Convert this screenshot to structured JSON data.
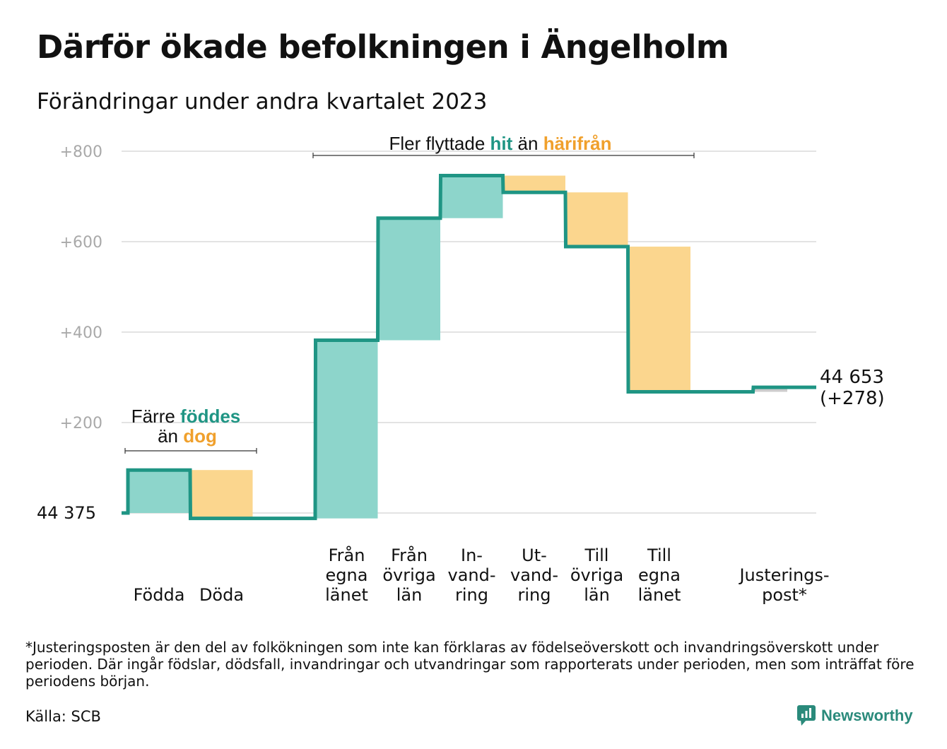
{
  "title": "Därför ökade befolkningen i Ängelholm",
  "subtitle": "Förändringar under andra kvartalet 2023",
  "footnote": "*Justeringsposten är den del av folkökningen som inte kan förklaras av födelseöverskott och invandringsöverskott under perioden. Där ingår födslar, dödsfall, invandringar och utvandringar som rapporterats under perioden, men som inträffat före periodens början.",
  "source": "Källa: SCB",
  "logo_text": "Newsworthy",
  "colors": {
    "increase": "#8dd5cb",
    "decrease": "#fbd68e",
    "line": "#1f9584",
    "adjustment": "#cccccc",
    "highlight_teal": "#1f9584",
    "highlight_orange": "#f0a02c",
    "axis_text": "#a9a9a9",
    "grid": "#e3e3e3"
  },
  "chart_data": {
    "type": "waterfall",
    "start_label": "44  375",
    "end_label_line1": "44 653",
    "end_label_line2": "(+278)",
    "ylim": [
      -20,
      820
    ],
    "yticks": [
      200,
      400,
      600,
      800
    ],
    "ytick_labels": [
      "+200",
      "+400",
      "+600",
      "+800"
    ],
    "grid": true,
    "steps": [
      {
        "label": [
          "Födda"
        ],
        "delta": 95,
        "kind": "increase"
      },
      {
        "label": [
          "Döda"
        ],
        "delta": -107,
        "kind": "decrease"
      },
      {
        "label": [],
        "delta": 0,
        "kind": "gap"
      },
      {
        "label": [
          "Från",
          "egna",
          "länet"
        ],
        "delta": 394,
        "kind": "increase"
      },
      {
        "label": [
          "Från",
          "övriga",
          "län"
        ],
        "delta": 270,
        "kind": "increase"
      },
      {
        "label": [
          "In-",
          "vand-",
          "ring"
        ],
        "delta": 94,
        "kind": "increase"
      },
      {
        "label": [
          "Ut-",
          "vand-",
          "ring"
        ],
        "delta": -37,
        "kind": "decrease"
      },
      {
        "label": [
          "Till",
          "övriga",
          "län"
        ],
        "delta": -120,
        "kind": "decrease"
      },
      {
        "label": [
          "Till",
          "egna",
          "länet"
        ],
        "delta": -321,
        "kind": "decrease"
      },
      {
        "label": [],
        "delta": 0,
        "kind": "gap"
      },
      {
        "label": [
          "Justerings-",
          "post*"
        ],
        "delta": 10,
        "kind": "adjustment"
      }
    ],
    "annotations": [
      {
        "id": "births",
        "line1": [
          "Färre ",
          "föddes"
        ],
        "line2": [
          "än ",
          "dog"
        ]
      },
      {
        "id": "moves",
        "line1": [
          "Fler flyttade ",
          "hit",
          " än ",
          "härifrån"
        ]
      }
    ]
  }
}
